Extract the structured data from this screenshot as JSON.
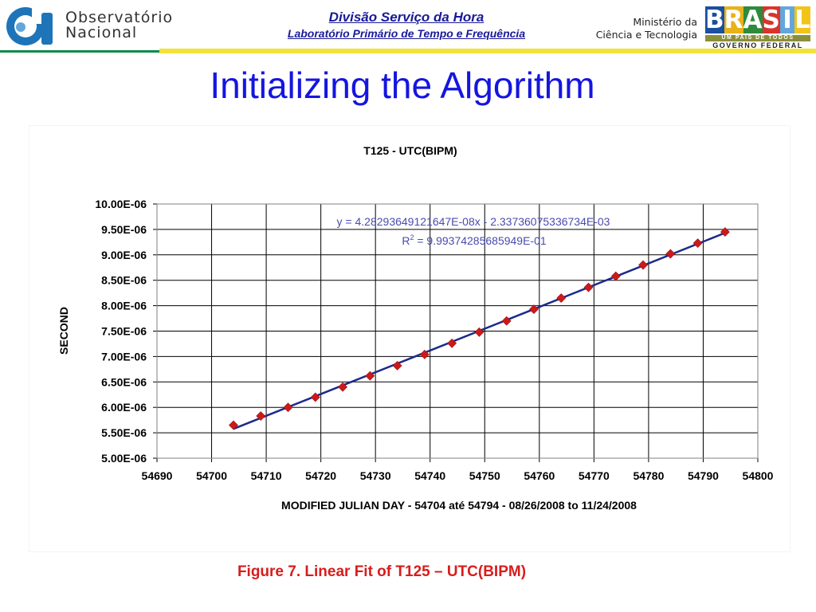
{
  "header": {
    "org_name_line1": "Observatório",
    "org_name_line2": "Nacional",
    "division": "Divisão Serviço da Hora",
    "laboratory": "Laboratório Primário de Tempo e Frequência",
    "ministry_line1": "Ministério da",
    "ministry_line2": "Ciência e Tecnologia",
    "brasil_letters": [
      "B",
      "R",
      "A",
      "S",
      "I",
      "L"
    ],
    "brasil_slogan": "UM PAÍS DE TODOS",
    "brasil_government": "GOVERNO FEDERAL"
  },
  "slide": {
    "title": "Initializing the Algorithm",
    "caption": "Figure 7. Linear Fit of T125 – UTC(BIPM)"
  },
  "colors": {
    "title_blue": "#1515e0",
    "header_blue": "#1a1a99",
    "caption_red": "#d81c1c",
    "marker_red": "#cc1a1a",
    "fit_line": "#1b2a8a",
    "equation_blue": "#4a4ab0",
    "header_yellow": "#f2e23a",
    "header_green": "#0f8a4a"
  },
  "chart_data": {
    "type": "scatter",
    "title": "T125 - UTC(BIPM)",
    "xlabel": "MODIFIED JULIAN DAY - 54704 até 54794 - 08/26/2008 to 11/24/2008",
    "ylabel": "SECOND",
    "xlim": [
      54690,
      54800
    ],
    "ylim": [
      5e-06,
      1e-05
    ],
    "x_ticks": [
      54690,
      54700,
      54710,
      54720,
      54730,
      54740,
      54750,
      54760,
      54770,
      54780,
      54790,
      54800
    ],
    "y_ticks": [
      5e-06,
      5.5e-06,
      6e-06,
      6.5e-06,
      7e-06,
      7.5e-06,
      8e-06,
      8.5e-06,
      9e-06,
      9.5e-06,
      1e-05
    ],
    "x_tick_labels": [
      "54690",
      "54700",
      "54710",
      "54720",
      "54730",
      "54740",
      "54750",
      "54760",
      "54770",
      "54780",
      "54790",
      "54800"
    ],
    "y_tick_labels": [
      "5.00E-06",
      "5.50E-06",
      "6.00E-06",
      "6.50E-06",
      "7.00E-06",
      "7.50E-06",
      "8.00E-06",
      "8.50E-06",
      "9.00E-06",
      "9.50E-06",
      "10.00E-06"
    ],
    "grid": true,
    "legend": "none",
    "series": [
      {
        "marker": "diamond",
        "x": [
          54704,
          54709,
          54714,
          54719,
          54724,
          54729,
          54734,
          54739,
          54744,
          54749,
          54754,
          54759,
          54764,
          54769,
          54774,
          54779,
          54784,
          54789,
          54794
        ],
        "y": [
          5.65e-06,
          5.83e-06,
          6e-06,
          6.2e-06,
          6.4e-06,
          6.62e-06,
          6.82e-06,
          7.04e-06,
          7.26e-06,
          7.48e-06,
          7.7e-06,
          7.93e-06,
          8.15e-06,
          8.36e-06,
          8.58e-06,
          8.8e-06,
          9.02e-06,
          9.23e-06,
          9.45e-06
        ]
      }
    ],
    "trendline": {
      "slope": 4.28293649121647e-08,
      "intercept": -0.00233736075336734,
      "x_range": [
        54704,
        54794
      ],
      "equation": "y = 4.28293649121647E-08x - 2.33736075336734E-03",
      "r2_label": "R",
      "r2_exponent": "2",
      "r2_value": " = 9.99374285685949E-01"
    }
  }
}
